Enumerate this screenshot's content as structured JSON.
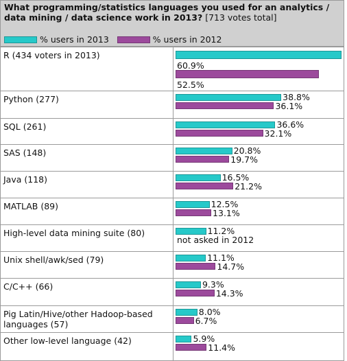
{
  "header": {
    "title": "What programming/statistics languages you used for an analytics / data mining / data science work in 2013?",
    "votes": "[713 votes total]"
  },
  "colors": {
    "y2013": "#26c9c9",
    "y2012": "#9c4a9c",
    "grid": "#9a9a9a",
    "header_bg": "#d0d0d0"
  },
  "chart_data": {
    "type": "bar",
    "orientation": "horizontal",
    "categories": [
      "R (434 voters in 2013)",
      "Python (277)",
      "SQL (261)",
      "SAS (148)",
      "Java (118)",
      "MATLAB (89)",
      "High-level data mining suite (80)",
      "Unix shell/awk/sed (79)",
      "C/C++ (66)",
      "Pig Latin/Hive/other Hadoop-based languages (57)",
      "Other low-level language (42)"
    ],
    "series": [
      {
        "name": "% users in 2013",
        "values": [
          60.9,
          38.8,
          36.6,
          20.8,
          16.5,
          12.5,
          11.2,
          11.1,
          9.3,
          8.0,
          5.9
        ],
        "labels": [
          "60.9%",
          "38.8%",
          "36.6%",
          "20.8%",
          "16.5%",
          "12.5%",
          "11.2%",
          "11.1%",
          "9.3%",
          "8.0%",
          "5.9%"
        ]
      },
      {
        "name": "% users in 2012",
        "values": [
          52.5,
          36.1,
          32.1,
          19.7,
          21.2,
          13.1,
          null,
          14.7,
          14.3,
          6.7,
          11.4
        ],
        "labels": [
          "52.5%",
          "36.1%",
          "32.1%",
          "19.7%",
          "21.2%",
          "13.1%",
          "not asked in 2012",
          "14.7%",
          "14.3%",
          "6.7%",
          "11.4%"
        ]
      }
    ],
    "xlim": [
      0,
      60.9
    ],
    "legend": "top-left"
  }
}
